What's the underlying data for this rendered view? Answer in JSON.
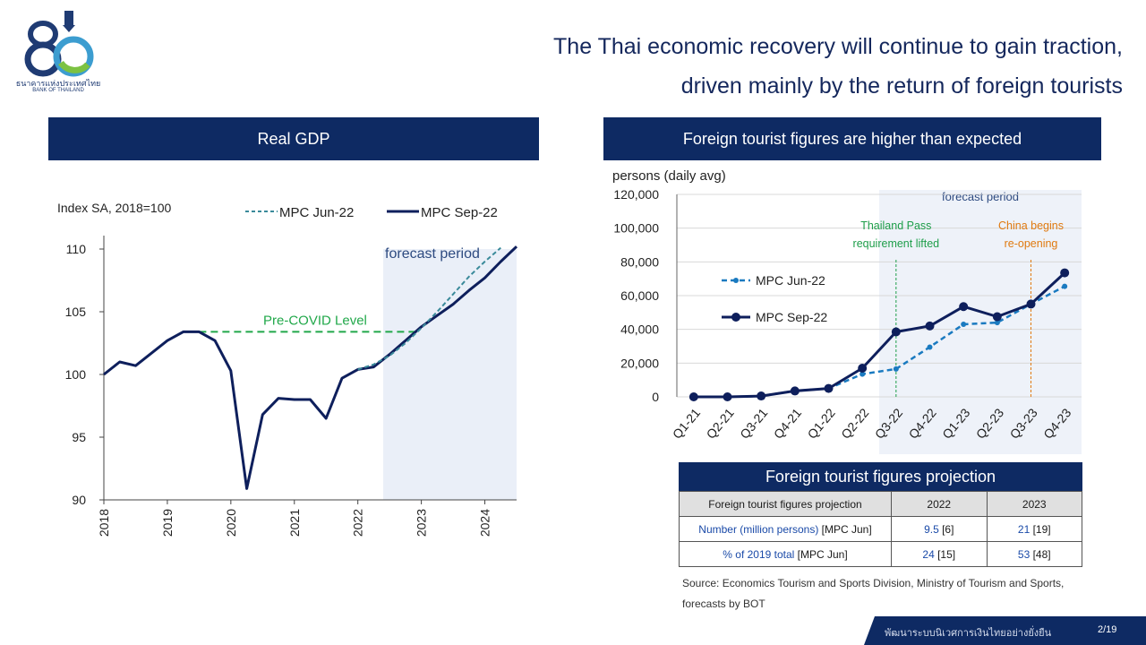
{
  "logo": {
    "thai_name": "ธนาคารแห่งประเทศไทย",
    "english_name": "BANK OF THAILAND"
  },
  "headline": {
    "line1": "The Thai economic recovery will continue to gain traction,",
    "line2": "driven mainly by the return of foreign tourists"
  },
  "left_panel": {
    "title": "Real GDP"
  },
  "right_panel": {
    "title": "Foreign tourist figures are higher than expected"
  },
  "chart_data": [
    {
      "type": "line",
      "ylabel": "Index SA, 2018=100",
      "ylim": [
        90,
        110
      ],
      "yticks": [
        90,
        95,
        100,
        105,
        110
      ],
      "xlim": [
        2018,
        2024.5
      ],
      "xticks": [
        "2018",
        "2019",
        "2020",
        "2021",
        "2022",
        "2023",
        "2024"
      ],
      "grid": false,
      "legend_position": "top",
      "shaded_region": {
        "label": "forecast period",
        "x_start": 2022.4,
        "x_end": 2024.5
      },
      "reference_line": {
        "label": "Pre-COVID Level",
        "y": 103.4,
        "x_start": 2019.5,
        "x_end": 2022.9
      },
      "series": [
        {
          "name": "MPC Sep-22",
          "color": "#0e1f5c",
          "style": "solid",
          "x": [
            2018.0,
            2018.25,
            2018.5,
            2018.75,
            2019.0,
            2019.25,
            2019.5,
            2019.75,
            2020.0,
            2020.25,
            2020.5,
            2020.75,
            2021.0,
            2021.25,
            2021.5,
            2021.75,
            2022.0,
            2022.25,
            2022.5,
            2022.75,
            2023.0,
            2023.25,
            2023.5,
            2023.75,
            2024.0,
            2024.25,
            2024.5
          ],
          "values": [
            100.0,
            101.0,
            100.7,
            101.7,
            102.7,
            103.4,
            103.4,
            102.7,
            100.3,
            90.9,
            96.8,
            98.1,
            98.0,
            98.0,
            96.5,
            99.7,
            100.4,
            100.6,
            101.6,
            102.7,
            103.8,
            104.7,
            105.6,
            106.7,
            107.7,
            109.0,
            110.2
          ]
        },
        {
          "name": "MPC Jun-22",
          "color": "#3a8a9a",
          "style": "dashed",
          "x": [
            2022.0,
            2022.25,
            2022.5,
            2022.75,
            2023.0,
            2023.25,
            2023.5,
            2023.75,
            2024.0,
            2024.25
          ],
          "values": [
            100.4,
            100.8,
            101.5,
            102.5,
            103.7,
            105.0,
            106.4,
            107.8,
            109.0,
            110.1
          ]
        }
      ]
    },
    {
      "type": "line",
      "ylabel": "persons (daily avg)",
      "ylim": [
        0,
        120000
      ],
      "yticks": [
        0,
        20000,
        40000,
        60000,
        80000,
        100000,
        120000
      ],
      "ytick_labels": [
        "0",
        "20,000",
        "40,000",
        "60,000",
        "80,000",
        "100,000",
        "120,000"
      ],
      "categories": [
        "Q1-21",
        "Q2-21",
        "Q3-21",
        "Q4-21",
        "Q1-22",
        "Q2-22",
        "Q3-22",
        "Q4-22",
        "Q1-23",
        "Q2-23",
        "Q3-23",
        "Q4-23"
      ],
      "grid": true,
      "legend_position": "left",
      "shaded_region": {
        "label": "forecast period",
        "from_category": "Q3-22",
        "to_category": "Q4-23"
      },
      "annotations": [
        {
          "text_line1": "Thailand Pass",
          "text_line2": "requirement lifted",
          "category": "Q3-22",
          "color": "#1e9e4a"
        },
        {
          "text_line1": "China begins",
          "text_line2": "re-opening",
          "category": "Q3-23",
          "color": "#e07a10"
        }
      ],
      "series": [
        {
          "name": "MPC Jun-22",
          "color": "#1a7ac0",
          "style": "dashed",
          "values": [
            0,
            0,
            500,
            3500,
            5000,
            13500,
            16500,
            29500,
            43000,
            44000,
            55000,
            65500
          ]
        },
        {
          "name": "MPC Sep-22",
          "color": "#0e1f5c",
          "style": "solid",
          "values": [
            0,
            0,
            500,
            3500,
            5000,
            17000,
            38500,
            42000,
            53500,
            47500,
            55000,
            73500
          ]
        }
      ]
    }
  ],
  "projection_table": {
    "title": "Foreign tourist figures projection",
    "headers": [
      "Foreign tourist figures projection",
      "2022",
      "2023"
    ],
    "rows": [
      {
        "label_main": "Number (million persons)",
        "label_note": " [MPC Jun]",
        "v2022": "9.5",
        "v2022_note": " [6]",
        "v2023": "21",
        "v2023_note": " [19]"
      },
      {
        "label_main": "% of 2019 total",
        "label_note": " [MPC Jun]",
        "v2022": "24",
        "v2022_note": " [15]",
        "v2023": "53",
        "v2023_note": " [48]"
      }
    ]
  },
  "source": "Source: Economics Tourism and Sports Division, Ministry of Tourism and Sports, forecasts by BOT",
  "footer": {
    "text": "พัฒนาระบบนิเวศการเงินไทยอย่างยั่งยืน",
    "page": "2/19"
  }
}
